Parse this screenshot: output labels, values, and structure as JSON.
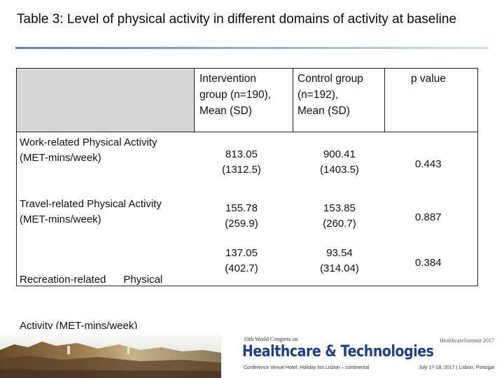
{
  "title": "Table 3: Level of physical activity in different domains of activity at baseline",
  "table": {
    "headers": {
      "intervention": [
        "Intervention",
        "group (n=190),",
        "Mean (SD)"
      ],
      "control": [
        "Control group",
        "(n=192),",
        "Mean (SD)"
      ],
      "pvalue": "p value"
    },
    "rows": [
      {
        "label": [
          "Work-related Physical Activity",
          "(MET-mins/week)"
        ],
        "intervention": [
          "813.05",
          "(1312.5)"
        ],
        "control": [
          "900.41",
          "(1403.5)"
        ],
        "p": "0.443"
      },
      {
        "label": [
          "Travel-related Physical Activity",
          "(MET-mins/week)"
        ],
        "intervention": [
          "155.78",
          "(259.9)"
        ],
        "control": [
          "153.85",
          "(260.7)"
        ],
        "p": "0.887"
      },
      {
        "label": [
          "Recreation-related      Physical",
          "Activity (MET-mins/week)"
        ],
        "intervention": [
          "137.05",
          "(402.7)"
        ],
        "control": [
          "93.54",
          "(314.04)"
        ],
        "p": "0.384"
      }
    ]
  },
  "footer": {
    "congress": "10th World Congress on",
    "event_name": "Healthcare & Technologies",
    "venue": "Conference Venue Hotel: Holiday Inn Lisbon – continental",
    "summit_logo": "HealthcareSummit 2017",
    "dates": "July 17-18, 2017 | Lisbon, Portugal"
  },
  "colors": {
    "title_rule": "#6a7fa8",
    "header_fill": "#d7d7d7",
    "banner_blue": "#1f3f86"
  }
}
